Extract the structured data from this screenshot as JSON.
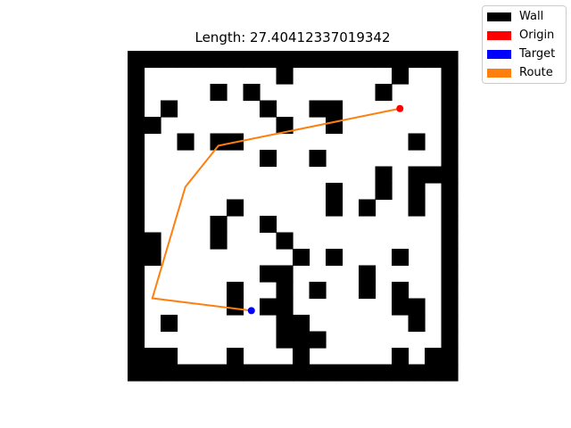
{
  "title": "Length: 27.40412337019342",
  "legend": [
    {
      "label": "Wall",
      "color": "#000000"
    },
    {
      "label": "Origin",
      "color": "#ff0000"
    },
    {
      "label": "Target",
      "color": "#0000ff"
    },
    {
      "label": "Route",
      "color": "#ff7f0e"
    }
  ],
  "maze": {
    "rows": [
      "11111111111111111111",
      "10000000010000001001",
      "10000101000000010001",
      "10100000100110000001",
      "11000000010010000001",
      "10010110000000000101",
      "10000000100100000001",
      "10000000000000010111",
      "10000000000010010101",
      "10000010000010100101",
      "10000100100000000001",
      "11000100010000000001",
      "11000000001010001001",
      "10000000110000100001",
      "10000010010100101001",
      "10000010110000001101",
      "10100000011000000101",
      "10000000011100000001",
      "11100010001000001011",
      "11111111111111111111"
    ]
  },
  "origin": {
    "row": 3.5,
    "col": 16.5,
    "color": "#ff0000"
  },
  "target": {
    "row": 15.75,
    "col": 7.5,
    "color": "#0000ff"
  },
  "route": {
    "color": "#ff7f0e",
    "points": [
      [
        3.5,
        16.5
      ],
      [
        5.75,
        5.5
      ],
      [
        8.25,
        3.5
      ],
      [
        15.0,
        1.5
      ],
      [
        15.75,
        7.5
      ]
    ]
  }
}
